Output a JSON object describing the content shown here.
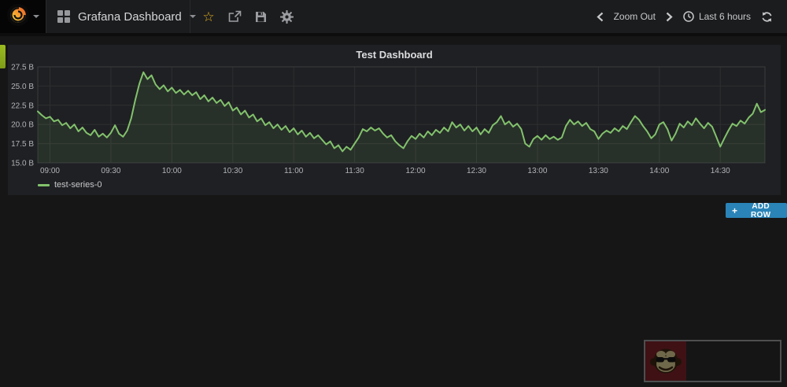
{
  "navbar": {
    "brand": {
      "logo_icon": "grafana-logo-icon"
    },
    "switcher": {
      "icon": "dashboards-grid-icon",
      "title": "Grafana Dashboard"
    },
    "actions": [
      {
        "name": "star-icon",
        "glyph": "☆"
      },
      {
        "name": "share-icon"
      },
      {
        "name": "save-icon"
      },
      {
        "name": "settings-gear-icon"
      }
    ],
    "time_controls": {
      "prev_icon": "chevron-left-icon",
      "zoom_out_label": "Zoom Out",
      "next_icon": "chevron-right-icon",
      "clock_icon": "clock-icon",
      "time_range_label": "Last 6 hours",
      "refresh_icon": "refresh-icon"
    }
  },
  "panel": {
    "title": "Test Dashboard"
  },
  "add_row": {
    "icon": "+",
    "label": "ADD ROW"
  },
  "colors": {
    "series_green": "#82c26c",
    "series_fill": "rgba(130,194,108,0.10)",
    "add_row_blue": "#2a84b8",
    "row_handle_green": "#9bbc20",
    "star_gold": "#dcae1f",
    "icon_gray": "#9b9da0"
  },
  "chart_data": {
    "type": "line",
    "title": "Test Dashboard",
    "unit": "B",
    "ylim": [
      15,
      27.5
    ],
    "start_time": "08:54",
    "x_range_minutes": 358,
    "grid": true,
    "legend_position": "bottom-left",
    "grid_color": "#2e2f31",
    "border_color": "#3a3b3e",
    "tick_color": "#b0b3b6",
    "y_ticks": [
      {
        "label": "15.0 B",
        "value": 15.0
      },
      {
        "label": "17.5 B",
        "value": 17.5
      },
      {
        "label": "20.0 B",
        "value": 20.0
      },
      {
        "label": "22.5 B",
        "value": 22.5
      },
      {
        "label": "25.0 B",
        "value": 25.0
      },
      {
        "label": "27.5 B",
        "value": 27.5
      }
    ],
    "x_ticks": [
      "09:00",
      "09:30",
      "10:00",
      "10:30",
      "11:00",
      "11:30",
      "12:00",
      "12:30",
      "13:00",
      "13:30",
      "14:00",
      "14:30"
    ],
    "series": [
      {
        "name": "test-series-0",
        "color": "#82c26c",
        "fill_color": "rgba(130,194,108,0.10)",
        "step_minutes": 2,
        "values": [
          21.7,
          21.2,
          20.8,
          21.0,
          20.4,
          20.6,
          19.9,
          20.2,
          19.5,
          20.0,
          19.1,
          19.6,
          18.9,
          18.6,
          19.3,
          18.4,
          18.8,
          18.3,
          18.9,
          19.9,
          18.8,
          18.4,
          19.2,
          20.8,
          23.2,
          25.3,
          26.8,
          25.9,
          26.4,
          25.2,
          24.6,
          25.1,
          24.3,
          24.8,
          24.1,
          24.5,
          23.9,
          24.4,
          23.8,
          24.2,
          23.3,
          23.8,
          23.0,
          23.5,
          22.8,
          23.2,
          22.4,
          22.9,
          21.8,
          22.2,
          21.3,
          21.8,
          20.9,
          21.3,
          20.4,
          20.8,
          19.9,
          20.3,
          19.5,
          20.0,
          19.3,
          19.8,
          19.0,
          19.5,
          18.7,
          19.2,
          18.4,
          18.9,
          18.2,
          18.6,
          18.0,
          17.4,
          17.8,
          16.9,
          17.3,
          16.5,
          17.1,
          16.7,
          17.5,
          18.3,
          19.4,
          19.1,
          19.6,
          19.2,
          19.5,
          18.8,
          18.3,
          18.6,
          17.8,
          17.3,
          16.9,
          17.8,
          18.5,
          18.1,
          18.8,
          18.3,
          19.1,
          18.6,
          19.3,
          18.9,
          19.6,
          19.1,
          20.3,
          19.6,
          20.0,
          19.2,
          19.8,
          19.1,
          19.6,
          18.7,
          19.4,
          18.9,
          19.9,
          20.3,
          21.1,
          20.0,
          20.4,
          19.7,
          20.1,
          19.4,
          17.5,
          17.1,
          18.1,
          18.5,
          18.0,
          18.6,
          18.1,
          18.4,
          18.0,
          18.3,
          19.8,
          20.6,
          20.0,
          20.4,
          19.8,
          20.2,
          19.4,
          19.1,
          18.1,
          18.8,
          19.2,
          18.9,
          19.5,
          19.1,
          19.8,
          19.4,
          20.3,
          21.1,
          20.6,
          19.8,
          19.1,
          18.2,
          18.7,
          20.0,
          20.3,
          19.4,
          17.9,
          18.8,
          20.1,
          19.6,
          20.4,
          19.9,
          20.8,
          20.1,
          19.5,
          20.2,
          19.7,
          18.4,
          17.1,
          18.2,
          19.2,
          20.1,
          19.8,
          20.5,
          20.1,
          20.9,
          21.4,
          22.7,
          21.6,
          21.9
        ]
      }
    ]
  }
}
